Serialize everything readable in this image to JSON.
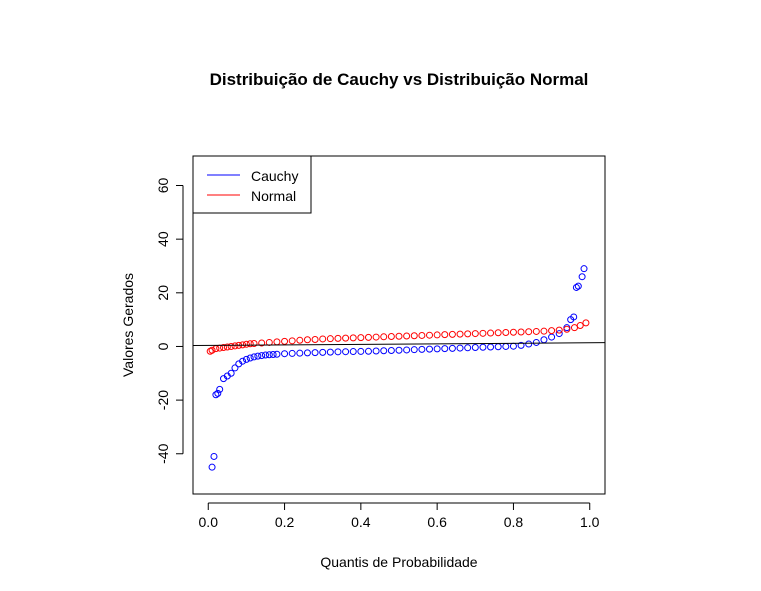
{
  "chart_data": {
    "type": "scatter",
    "title": "Distribuição de Cauchy vs Distribuição Normal",
    "xlabel": "Quantis de Probabilidade",
    "ylabel": "Valores Gerados",
    "xlim": [
      -0.04,
      1.04
    ],
    "ylim": [
      -55,
      71
    ],
    "x_ticks": [
      0.0,
      0.2,
      0.4,
      0.6,
      0.8,
      1.0
    ],
    "x_tick_labels": [
      "0.0",
      "0.2",
      "0.4",
      "0.6",
      "0.8",
      "1.0"
    ],
    "y_ticks": [
      -40,
      -20,
      0,
      20,
      40,
      60
    ],
    "y_tick_labels": [
      "-40",
      "-20",
      "0",
      "20",
      "40",
      "60"
    ],
    "grid": false,
    "legend_position": "top-left",
    "reference_line": {
      "type": "abline",
      "a": 0.4,
      "b": 0.97,
      "color": "#000000"
    },
    "series": [
      {
        "name": "Cauchy",
        "color": "#0000ff",
        "marker": "open-circle",
        "points": [
          [
            0.01,
            -45
          ],
          [
            0.015,
            -41
          ],
          [
            0.02,
            -18
          ],
          [
            0.025,
            -17.5
          ],
          [
            0.03,
            -16
          ],
          [
            0.04,
            -12
          ],
          [
            0.05,
            -11
          ],
          [
            0.06,
            -10
          ],
          [
            0.07,
            -8
          ],
          [
            0.08,
            -6.5
          ],
          [
            0.09,
            -5.5
          ],
          [
            0.1,
            -4.8
          ],
          [
            0.11,
            -4.3
          ],
          [
            0.12,
            -3.9
          ],
          [
            0.13,
            -3.6
          ],
          [
            0.14,
            -3.4
          ],
          [
            0.15,
            -3.2
          ],
          [
            0.16,
            -3.1
          ],
          [
            0.17,
            -3.0
          ],
          [
            0.18,
            -2.9
          ],
          [
            0.2,
            -2.7
          ],
          [
            0.22,
            -2.6
          ],
          [
            0.24,
            -2.5
          ],
          [
            0.26,
            -2.4
          ],
          [
            0.28,
            -2.3
          ],
          [
            0.3,
            -2.2
          ],
          [
            0.32,
            -2.1
          ],
          [
            0.34,
            -2.0
          ],
          [
            0.36,
            -1.95
          ],
          [
            0.38,
            -1.9
          ],
          [
            0.4,
            -1.85
          ],
          [
            0.42,
            -1.8
          ],
          [
            0.44,
            -1.7
          ],
          [
            0.46,
            -1.6
          ],
          [
            0.48,
            -1.5
          ],
          [
            0.5,
            -1.4
          ],
          [
            0.52,
            -1.3
          ],
          [
            0.54,
            -1.2
          ],
          [
            0.56,
            -1.1
          ],
          [
            0.58,
            -1.0
          ],
          [
            0.6,
            -0.9
          ],
          [
            0.62,
            -0.8
          ],
          [
            0.64,
            -0.7
          ],
          [
            0.66,
            -0.6
          ],
          [
            0.68,
            -0.5
          ],
          [
            0.7,
            -0.4
          ],
          [
            0.72,
            -0.3
          ],
          [
            0.74,
            -0.2
          ],
          [
            0.76,
            -0.1
          ],
          [
            0.78,
            0.0
          ],
          [
            0.8,
            0.1
          ],
          [
            0.82,
            0.4
          ],
          [
            0.84,
            0.9
          ],
          [
            0.86,
            1.5
          ],
          [
            0.88,
            2.5
          ],
          [
            0.9,
            3.5
          ],
          [
            0.92,
            4.8
          ],
          [
            0.94,
            7
          ],
          [
            0.95,
            10
          ],
          [
            0.958,
            11
          ],
          [
            0.965,
            22
          ],
          [
            0.97,
            22.5
          ],
          [
            0.98,
            26
          ],
          [
            0.985,
            29
          ]
        ]
      },
      {
        "name": "Normal",
        "color": "#ff0000",
        "marker": "open-circle",
        "points": [
          [
            0.005,
            -1.8
          ],
          [
            0.01,
            -1.4
          ],
          [
            0.02,
            -0.8
          ],
          [
            0.03,
            -0.6
          ],
          [
            0.04,
            -0.4
          ],
          [
            0.05,
            -0.2
          ],
          [
            0.06,
            0.0
          ],
          [
            0.07,
            0.2
          ],
          [
            0.08,
            0.4
          ],
          [
            0.09,
            0.6
          ],
          [
            0.1,
            0.8
          ],
          [
            0.11,
            1.0
          ],
          [
            0.12,
            1.1
          ],
          [
            0.14,
            1.3
          ],
          [
            0.16,
            1.5
          ],
          [
            0.18,
            1.7
          ],
          [
            0.2,
            1.9
          ],
          [
            0.22,
            2.1
          ],
          [
            0.24,
            2.3
          ],
          [
            0.26,
            2.5
          ],
          [
            0.28,
            2.6
          ],
          [
            0.3,
            2.8
          ],
          [
            0.32,
            2.9
          ],
          [
            0.34,
            3.0
          ],
          [
            0.36,
            3.1
          ],
          [
            0.38,
            3.2
          ],
          [
            0.4,
            3.3
          ],
          [
            0.42,
            3.4
          ],
          [
            0.44,
            3.5
          ],
          [
            0.46,
            3.6
          ],
          [
            0.48,
            3.7
          ],
          [
            0.5,
            3.8
          ],
          [
            0.52,
            3.9
          ],
          [
            0.54,
            4.0
          ],
          [
            0.56,
            4.1
          ],
          [
            0.58,
            4.2
          ],
          [
            0.6,
            4.3
          ],
          [
            0.62,
            4.4
          ],
          [
            0.64,
            4.5
          ],
          [
            0.66,
            4.6
          ],
          [
            0.68,
            4.7
          ],
          [
            0.7,
            4.8
          ],
          [
            0.72,
            4.9
          ],
          [
            0.74,
            5.0
          ],
          [
            0.76,
            5.1
          ],
          [
            0.78,
            5.2
          ],
          [
            0.8,
            5.3
          ],
          [
            0.82,
            5.4
          ],
          [
            0.84,
            5.5
          ],
          [
            0.86,
            5.6
          ],
          [
            0.88,
            5.7
          ],
          [
            0.9,
            5.9
          ],
          [
            0.92,
            6.1
          ],
          [
            0.94,
            6.4
          ],
          [
            0.96,
            7.0
          ],
          [
            0.975,
            7.8
          ],
          [
            0.99,
            8.8
          ]
        ]
      }
    ]
  }
}
